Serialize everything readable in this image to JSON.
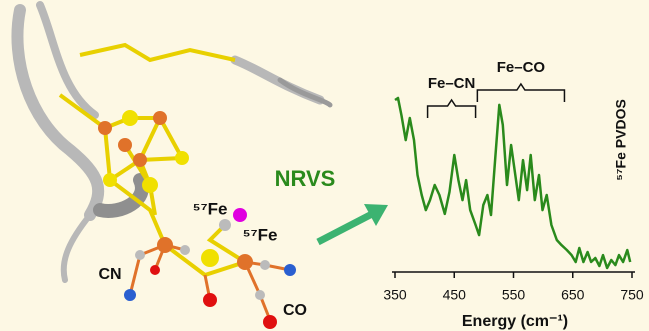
{
  "chart_data": {
    "type": "line",
    "x_label": "Energy (cm⁻¹)",
    "y_label": "⁵⁷Fe PVDOS",
    "xlim": [
      350,
      750
    ],
    "xticks": [
      350,
      450,
      550,
      650,
      750
    ],
    "ylim": [
      0,
      1
    ],
    "color": "#2a8a1c",
    "x": [
      350,
      355,
      361,
      368,
      375,
      382,
      388,
      395,
      402,
      409,
      417,
      425,
      434,
      442,
      450,
      457,
      464,
      470,
      477,
      486,
      492,
      499,
      506,
      512,
      519,
      526,
      532,
      539,
      546,
      553,
      559,
      566,
      573,
      579,
      586,
      593,
      599,
      606,
      614,
      623,
      631,
      640,
      648,
      655,
      661,
      668,
      675,
      681,
      688,
      695,
      701,
      708,
      715,
      722,
      728,
      735,
      742,
      747
    ],
    "values": [
      0.945,
      0.956,
      0.86,
      0.725,
      0.846,
      0.725,
      0.533,
      0.423,
      0.34,
      0.395,
      0.478,
      0.423,
      0.319,
      0.44,
      0.643,
      0.505,
      0.395,
      0.505,
      0.34,
      0.258,
      0.203,
      0.368,
      0.423,
      0.313,
      0.615,
      0.918,
      0.808,
      0.478,
      0.698,
      0.533,
      0.395,
      0.615,
      0.45,
      0.643,
      0.395,
      0.533,
      0.34,
      0.423,
      0.258,
      0.176,
      0.148,
      0.121,
      0.093,
      0.055,
      0.132,
      0.055,
      0.11,
      0.055,
      0.077,
      0.033,
      0.093,
      0.022,
      0.066,
      0.038,
      0.093,
      0.055,
      0.121,
      0.055
    ],
    "annotations": [
      {
        "text": "Fe–CN",
        "x": [
          405,
          486
        ]
      },
      {
        "text": "Fe–CO",
        "x": [
          489,
          636
        ]
      }
    ]
  },
  "figure": {
    "arrow_label": "NRVS",
    "atom_labels": [
      "⁵⁷Fe",
      "⁵⁷Fe",
      "CN",
      "CO"
    ]
  }
}
